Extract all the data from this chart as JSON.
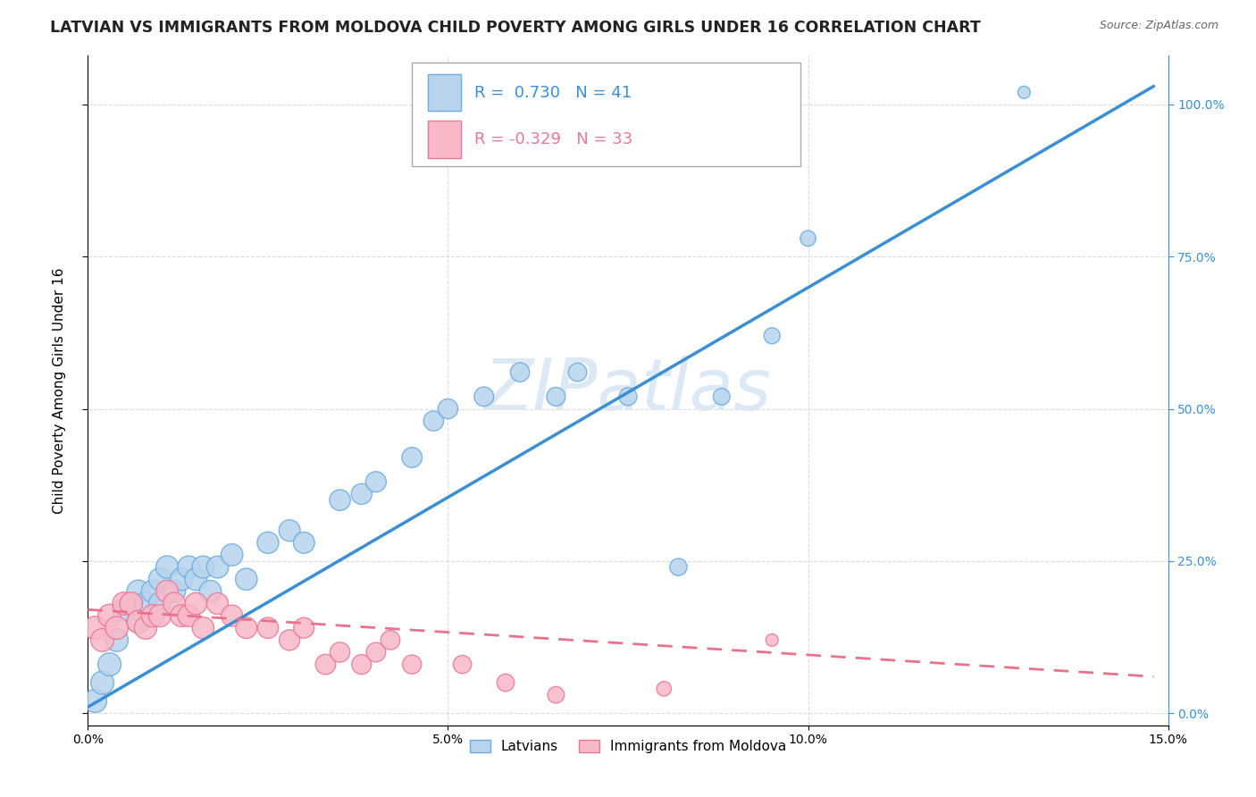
{
  "title": "LATVIAN VS IMMIGRANTS FROM MOLDOVA CHILD POVERTY AMONG GIRLS UNDER 16 CORRELATION CHART",
  "source": "Source: ZipAtlas.com",
  "ylabel": "Child Poverty Among Girls Under 16",
  "xlim": [
    0.0,
    0.15
  ],
  "ylim": [
    -0.02,
    1.08
  ],
  "xticks": [
    0.0,
    0.05,
    0.1,
    0.15
  ],
  "xtick_labels": [
    "0.0%",
    "5.0%",
    "10.0%",
    "15.0%"
  ],
  "yticks_right": [
    0.0,
    0.25,
    0.5,
    0.75,
    1.0
  ],
  "ytick_labels_right": [
    "0.0%",
    "25.0%",
    "50.0%",
    "75.0%",
    "100.0%"
  ],
  "latvian_R": 0.73,
  "latvian_N": 41,
  "moldova_R": -0.329,
  "moldova_N": 33,
  "latvian_color": "#b8d4ed",
  "moldova_color": "#f9b8c8",
  "latvian_edge_color": "#6aabdf",
  "moldova_edge_color": "#e87896",
  "latvian_line_color": "#3a8fd4",
  "moldova_line_color": "#e8728a",
  "watermark": "ZIPatlas",
  "latvian_scatter_x": [
    0.001,
    0.002,
    0.003,
    0.004,
    0.005,
    0.006,
    0.007,
    0.007,
    0.008,
    0.009,
    0.01,
    0.01,
    0.011,
    0.012,
    0.013,
    0.014,
    0.015,
    0.016,
    0.017,
    0.018,
    0.02,
    0.022,
    0.025,
    0.028,
    0.03,
    0.035,
    0.038,
    0.04,
    0.045,
    0.048,
    0.05,
    0.055,
    0.06,
    0.065,
    0.068,
    0.075,
    0.082,
    0.088,
    0.095,
    0.1,
    0.13
  ],
  "latvian_scatter_y": [
    0.02,
    0.05,
    0.08,
    0.12,
    0.17,
    0.18,
    0.2,
    0.15,
    0.18,
    0.2,
    0.18,
    0.22,
    0.24,
    0.2,
    0.22,
    0.24,
    0.22,
    0.24,
    0.2,
    0.24,
    0.26,
    0.22,
    0.28,
    0.3,
    0.28,
    0.35,
    0.36,
    0.38,
    0.42,
    0.48,
    0.5,
    0.52,
    0.56,
    0.52,
    0.56,
    0.52,
    0.24,
    0.52,
    0.62,
    0.78,
    1.02
  ],
  "moldova_scatter_x": [
    0.001,
    0.002,
    0.003,
    0.004,
    0.005,
    0.006,
    0.007,
    0.008,
    0.009,
    0.01,
    0.011,
    0.012,
    0.013,
    0.014,
    0.015,
    0.016,
    0.018,
    0.02,
    0.022,
    0.025,
    0.028,
    0.03,
    0.033,
    0.035,
    0.038,
    0.04,
    0.042,
    0.045,
    0.052,
    0.058,
    0.065,
    0.08,
    0.095
  ],
  "moldova_scatter_y": [
    0.14,
    0.12,
    0.16,
    0.14,
    0.18,
    0.18,
    0.15,
    0.14,
    0.16,
    0.16,
    0.2,
    0.18,
    0.16,
    0.16,
    0.18,
    0.14,
    0.18,
    0.16,
    0.14,
    0.14,
    0.12,
    0.14,
    0.08,
    0.1,
    0.08,
    0.1,
    0.12,
    0.08,
    0.08,
    0.05,
    0.03,
    0.04,
    0.12
  ],
  "latvian_line_x": [
    0.0,
    0.148
  ],
  "latvian_line_y": [
    0.01,
    1.03
  ],
  "moldova_line_x": [
    0.0,
    0.148
  ],
  "moldova_line_y": [
    0.17,
    0.06
  ],
  "background_color": "#ffffff",
  "grid_color": "#cccccc",
  "title_fontsize": 12.5,
  "axis_label_fontsize": 11,
  "tick_fontsize": 10,
  "legend_fontsize": 13
}
